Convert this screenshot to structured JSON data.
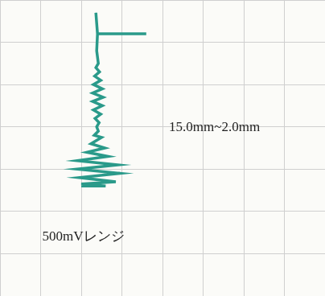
{
  "chart_data": {
    "type": "line",
    "x": [
      3.6,
      2.4,
      2.36,
      2.4,
      2.38,
      2.42,
      2.36,
      2.45,
      2.33,
      2.48,
      2.3,
      2.52,
      2.28,
      2.54,
      2.28,
      2.52,
      2.3,
      2.48,
      2.34,
      2.44,
      2.38,
      2.42,
      2.32,
      2.5,
      2.24,
      2.58,
      2.14,
      2.66,
      1.9,
      2.9,
      1.9,
      2.95,
      1.95,
      2.85,
      2.0,
      2.6,
      2.0
    ],
    "values": [
      6.2,
      6.2,
      6.7,
      6.2,
      5.8,
      5.5,
      5.4,
      5.3,
      5.2,
      5.1,
      5.0,
      4.9,
      4.8,
      4.7,
      4.6,
      4.5,
      4.4,
      4.3,
      4.2,
      4.1,
      4.0,
      3.9,
      3.8,
      3.75,
      3.6,
      3.5,
      3.4,
      3.3,
      3.2,
      3.1,
      3.0,
      2.9,
      2.8,
      2.7,
      2.65,
      2.6,
      2.6
    ],
    "color": "#2a9a8a",
    "xlim": [
      0,
      8
    ],
    "xticks": [
      0,
      1,
      2,
      3,
      4,
      5,
      6,
      7,
      8
    ],
    "ylim": [
      0,
      7
    ],
    "yticks": [
      0,
      1,
      2,
      3,
      4,
      5,
      6,
      7
    ],
    "grid": true,
    "tick_labels": false,
    "annotations": [
      "15.0mm~2.0mm",
      "500mVレンジ"
    ]
  }
}
